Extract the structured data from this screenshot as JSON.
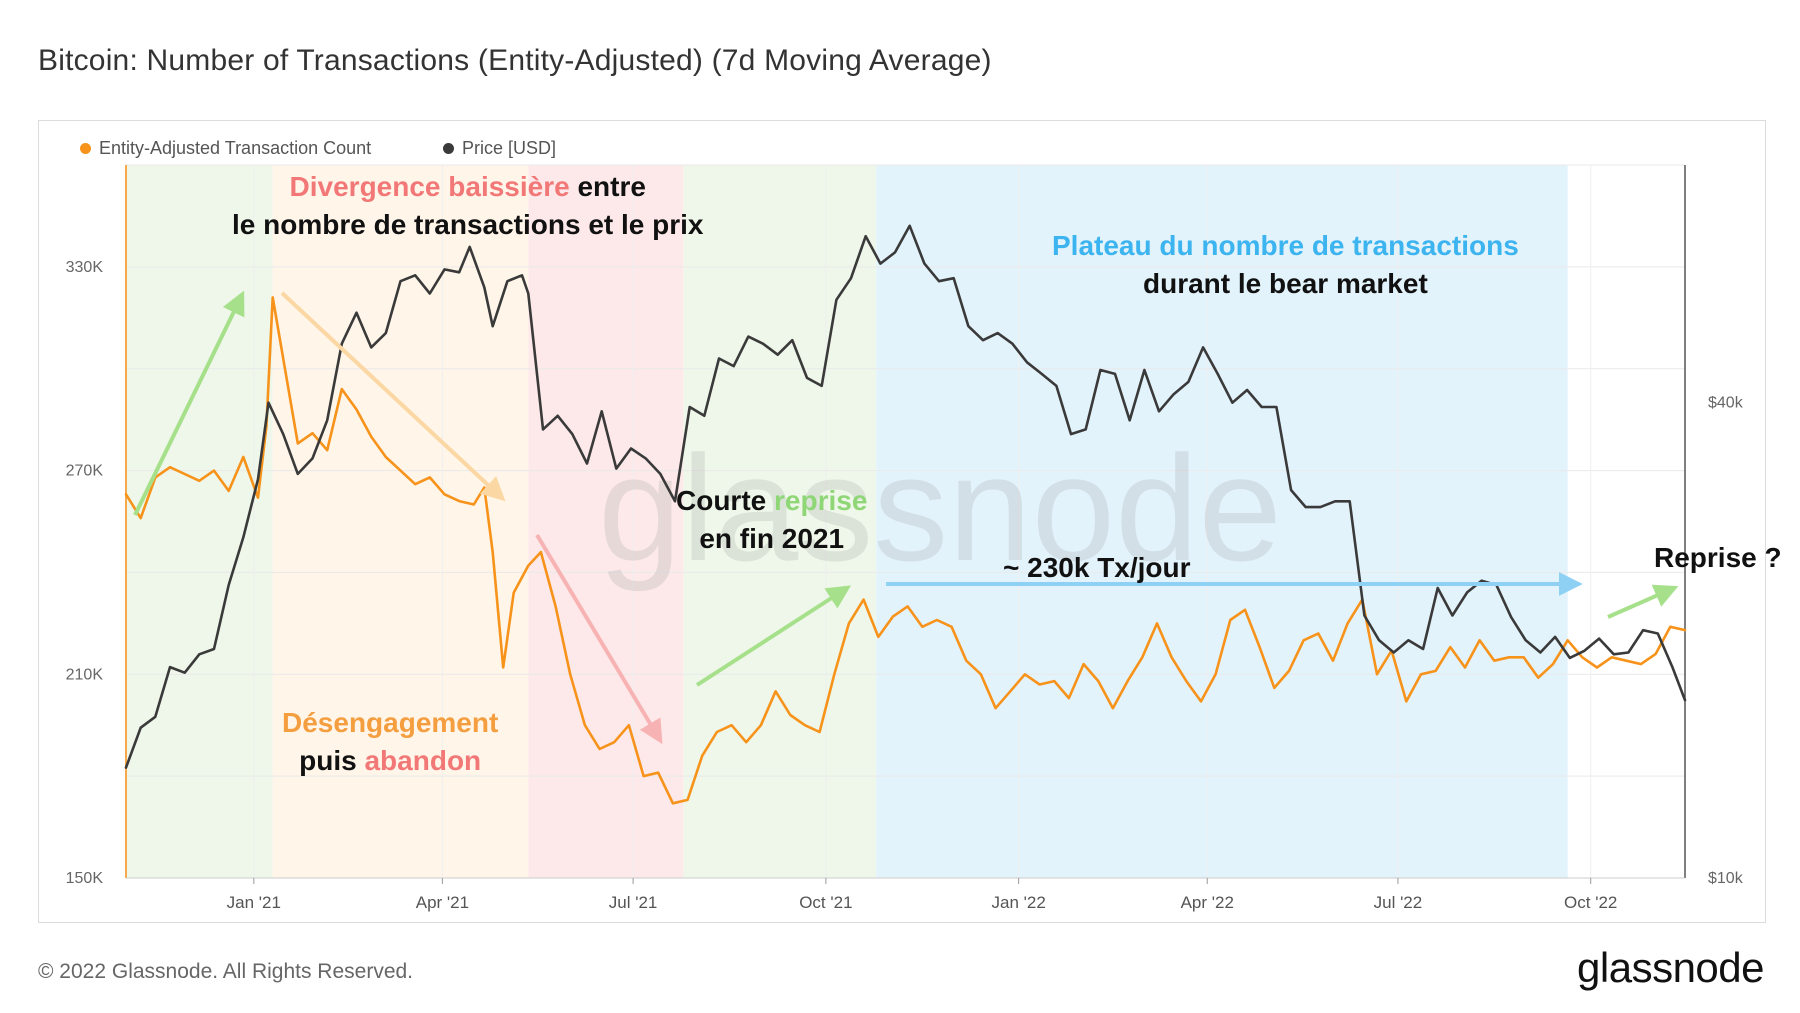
{
  "title": "Bitcoin: Number of Transactions (Entity-Adjusted) (7d Moving Average)",
  "footer": {
    "copyright": "© 2022 Glassnode. All Rights Reserved.",
    "logo": "glassnode"
  },
  "watermark": "glassnode",
  "colors": {
    "tx": "#f7931a",
    "price": "#3a3a3a",
    "green_zone": "#eef7e9",
    "orange_zone": "#fff5e9",
    "red_zone": "#fde9e9",
    "blue_zone": "#e3f3fc",
    "red_text": "#f27878",
    "orange_text": "#f59e3f",
    "green_text": "#8fd776",
    "blue_text": "#3cb4f0"
  },
  "annotations": {
    "divergence_colored": "Divergence baissière",
    "divergence_rest1": " entre",
    "divergence_line2": "le nombre de transactions et le prix",
    "disengagement_line1": "Désengagement",
    "disengagement_line2_a": "puis ",
    "disengagement_line2_b": "abandon",
    "recovery_a": "Courte ",
    "recovery_b": "reprise",
    "recovery_line2": "en fin 2021",
    "plateau_line1": "Plateau du nombre de transactions",
    "plateau_line2": "durant le bear market",
    "plateau_level": "~ 230k Tx/jour",
    "reprise": "Reprise ?"
  },
  "chart_data": {
    "type": "line",
    "title": "Bitcoin: Number of Transactions (Entity-Adjusted) (7d Moving Average)",
    "x_start": "2020-11-01",
    "x_end": "2022-11-15",
    "x_ticks": [
      "Jan '21",
      "Apr '21",
      "Jul '21",
      "Oct '21",
      "Jan '22",
      "Apr '22",
      "Jul '22",
      "Oct '22"
    ],
    "x_tick_dates": [
      "2021-01-01",
      "2021-04-01",
      "2021-07-01",
      "2021-10-01",
      "2022-01-01",
      "2022-04-01",
      "2022-07-01",
      "2022-10-01"
    ],
    "y_left": {
      "ticks": [
        "150K",
        "210K",
        "270K",
        "330K"
      ],
      "tick_values": [
        150000,
        210000,
        270000,
        330000
      ],
      "range": [
        150000,
        360000
      ]
    },
    "y_right": {
      "ticks": [
        "$10k",
        "$40k"
      ],
      "tick_values": [
        10000,
        40000
      ],
      "scale": "log",
      "range": [
        10000,
        80000
      ]
    },
    "legend": [
      {
        "name": "Entity-Adjusted Transaction Count",
        "color": "#f7931a"
      },
      {
        "name": "Price [USD]",
        "color": "#3a3a3a"
      }
    ],
    "zones": [
      {
        "from": "2020-11-01",
        "to": "2021-01-10",
        "type": "green"
      },
      {
        "from": "2021-01-10",
        "to": "2021-05-12",
        "type": "orange"
      },
      {
        "from": "2021-05-12",
        "to": "2021-07-25",
        "type": "red"
      },
      {
        "from": "2021-07-25",
        "to": "2021-10-25",
        "type": "green"
      },
      {
        "from": "2021-10-25",
        "to": "2022-09-20",
        "type": "blue"
      }
    ],
    "series": [
      {
        "name": "Entity-Adjusted Transaction Count",
        "axis": "left",
        "points": [
          [
            "2020-11-01",
            263000
          ],
          [
            "2020-11-08",
            256000
          ],
          [
            "2020-11-15",
            268000
          ],
          [
            "2020-11-22",
            271000
          ],
          [
            "2020-11-29",
            269000
          ],
          [
            "2020-12-06",
            267000
          ],
          [
            "2020-12-13",
            270000
          ],
          [
            "2020-12-20",
            264000
          ],
          [
            "2020-12-27",
            274000
          ],
          [
            "2021-01-03",
            262000
          ],
          [
            "2021-01-07",
            283000
          ],
          [
            "2021-01-10",
            321000
          ],
          [
            "2021-01-15",
            303000
          ],
          [
            "2021-01-22",
            278000
          ],
          [
            "2021-01-29",
            281000
          ],
          [
            "2021-02-05",
            276000
          ],
          [
            "2021-02-12",
            294000
          ],
          [
            "2021-02-19",
            288000
          ],
          [
            "2021-02-26",
            280000
          ],
          [
            "2021-03-05",
            274000
          ],
          [
            "2021-03-12",
            270000
          ],
          [
            "2021-03-19",
            266000
          ],
          [
            "2021-03-26",
            268000
          ],
          [
            "2021-04-02",
            263000
          ],
          [
            "2021-04-09",
            261000
          ],
          [
            "2021-04-16",
            260000
          ],
          [
            "2021-04-21",
            265000
          ],
          [
            "2021-04-25",
            246000
          ],
          [
            "2021-04-30",
            212000
          ],
          [
            "2021-05-05",
            234000
          ],
          [
            "2021-05-12",
            242000
          ],
          [
            "2021-05-18",
            246000
          ],
          [
            "2021-05-25",
            230000
          ],
          [
            "2021-06-01",
            210000
          ],
          [
            "2021-06-08",
            195000
          ],
          [
            "2021-06-15",
            188000
          ],
          [
            "2021-06-22",
            190000
          ],
          [
            "2021-06-29",
            195000
          ],
          [
            "2021-07-06",
            180000
          ],
          [
            "2021-07-13",
            181000
          ],
          [
            "2021-07-20",
            172000
          ],
          [
            "2021-07-27",
            173000
          ],
          [
            "2021-08-03",
            186000
          ],
          [
            "2021-08-10",
            193000
          ],
          [
            "2021-08-17",
            195000
          ],
          [
            "2021-08-24",
            190000
          ],
          [
            "2021-08-31",
            195000
          ],
          [
            "2021-09-07",
            205000
          ],
          [
            "2021-09-14",
            198000
          ],
          [
            "2021-09-21",
            195000
          ],
          [
            "2021-09-28",
            193000
          ],
          [
            "2021-10-05",
            210000
          ],
          [
            "2021-10-12",
            225000
          ],
          [
            "2021-10-19",
            232000
          ],
          [
            "2021-10-26",
            221000
          ],
          [
            "2021-11-02",
            227000
          ],
          [
            "2021-11-09",
            230000
          ],
          [
            "2021-11-16",
            224000
          ],
          [
            "2021-11-23",
            226000
          ],
          [
            "2021-11-30",
            224000
          ],
          [
            "2021-12-07",
            214000
          ],
          [
            "2021-12-14",
            210000
          ],
          [
            "2021-12-21",
            200000
          ],
          [
            "2021-12-28",
            205000
          ],
          [
            "2022-01-04",
            210000
          ],
          [
            "2022-01-11",
            207000
          ],
          [
            "2022-01-18",
            208000
          ],
          [
            "2022-01-25",
            203000
          ],
          [
            "2022-02-01",
            213000
          ],
          [
            "2022-02-08",
            208000
          ],
          [
            "2022-02-15",
            200000
          ],
          [
            "2022-02-22",
            208000
          ],
          [
            "2022-03-01",
            215000
          ],
          [
            "2022-03-08",
            225000
          ],
          [
            "2022-03-15",
            215000
          ],
          [
            "2022-03-22",
            208000
          ],
          [
            "2022-03-29",
            202000
          ],
          [
            "2022-04-05",
            210000
          ],
          [
            "2022-04-12",
            226000
          ],
          [
            "2022-04-19",
            229000
          ],
          [
            "2022-04-26",
            218000
          ],
          [
            "2022-05-03",
            206000
          ],
          [
            "2022-05-10",
            211000
          ],
          [
            "2022-05-17",
            220000
          ],
          [
            "2022-05-24",
            222000
          ],
          [
            "2022-05-31",
            214000
          ],
          [
            "2022-06-07",
            225000
          ],
          [
            "2022-06-14",
            232000
          ],
          [
            "2022-06-21",
            210000
          ],
          [
            "2022-06-28",
            217000
          ],
          [
            "2022-07-05",
            202000
          ],
          [
            "2022-07-12",
            210000
          ],
          [
            "2022-07-19",
            211000
          ],
          [
            "2022-07-26",
            218000
          ],
          [
            "2022-08-02",
            212000
          ],
          [
            "2022-08-09",
            220000
          ],
          [
            "2022-08-16",
            214000
          ],
          [
            "2022-08-23",
            215000
          ],
          [
            "2022-08-30",
            215000
          ],
          [
            "2022-09-06",
            209000
          ],
          [
            "2022-09-13",
            213000
          ],
          [
            "2022-09-20",
            220000
          ],
          [
            "2022-09-27",
            215000
          ],
          [
            "2022-10-04",
            212000
          ],
          [
            "2022-10-11",
            215000
          ],
          [
            "2022-10-18",
            214000
          ],
          [
            "2022-10-25",
            213000
          ],
          [
            "2022-11-01",
            216000
          ],
          [
            "2022-11-08",
            224000
          ],
          [
            "2022-11-15",
            223000
          ]
        ]
      },
      {
        "name": "Price [USD]",
        "axis": "right",
        "points": [
          [
            "2020-11-01",
            13800
          ],
          [
            "2020-11-08",
            15500
          ],
          [
            "2020-11-15",
            16000
          ],
          [
            "2020-11-22",
            18500
          ],
          [
            "2020-11-29",
            18200
          ],
          [
            "2020-12-06",
            19200
          ],
          [
            "2020-12-13",
            19500
          ],
          [
            "2020-12-20",
            23500
          ],
          [
            "2020-12-27",
            27000
          ],
          [
            "2021-01-03",
            32000
          ],
          [
            "2021-01-08",
            40000
          ],
          [
            "2021-01-15",
            36500
          ],
          [
            "2021-01-22",
            32500
          ],
          [
            "2021-01-29",
            34000
          ],
          [
            "2021-02-05",
            38000
          ],
          [
            "2021-02-12",
            47500
          ],
          [
            "2021-02-19",
            52000
          ],
          [
            "2021-02-26",
            47000
          ],
          [
            "2021-03-05",
            49000
          ],
          [
            "2021-03-12",
            57000
          ],
          [
            "2021-03-19",
            58000
          ],
          [
            "2021-03-26",
            55000
          ],
          [
            "2021-04-02",
            59000
          ],
          [
            "2021-04-09",
            58500
          ],
          [
            "2021-04-14",
            63000
          ],
          [
            "2021-04-21",
            56000
          ],
          [
            "2021-04-25",
            50000
          ],
          [
            "2021-05-02",
            57000
          ],
          [
            "2021-05-09",
            58000
          ],
          [
            "2021-05-12",
            55000
          ],
          [
            "2021-05-19",
            37000
          ],
          [
            "2021-05-26",
            38500
          ],
          [
            "2021-06-02",
            36500
          ],
          [
            "2021-06-09",
            33500
          ],
          [
            "2021-06-16",
            39000
          ],
          [
            "2021-06-23",
            33000
          ],
          [
            "2021-06-30",
            35000
          ],
          [
            "2021-07-07",
            34000
          ],
          [
            "2021-07-14",
            32500
          ],
          [
            "2021-07-21",
            30000
          ],
          [
            "2021-07-28",
            39500
          ],
          [
            "2021-08-04",
            38500
          ],
          [
            "2021-08-11",
            45500
          ],
          [
            "2021-08-18",
            44500
          ],
          [
            "2021-08-25",
            48500
          ],
          [
            "2021-09-01",
            47500
          ],
          [
            "2021-09-08",
            46000
          ],
          [
            "2021-09-15",
            48000
          ],
          [
            "2021-09-22",
            43000
          ],
          [
            "2021-09-29",
            42000
          ],
          [
            "2021-10-06",
            54000
          ],
          [
            "2021-10-13",
            57500
          ],
          [
            "2021-10-20",
            65000
          ],
          [
            "2021-10-27",
            60000
          ],
          [
            "2021-11-03",
            62000
          ],
          [
            "2021-11-10",
            67000
          ],
          [
            "2021-11-17",
            60000
          ],
          [
            "2021-11-24",
            57000
          ],
          [
            "2021-12-01",
            57500
          ],
          [
            "2021-12-08",
            50000
          ],
          [
            "2021-12-15",
            48000
          ],
          [
            "2021-12-22",
            49000
          ],
          [
            "2021-12-29",
            47500
          ],
          [
            "2022-01-05",
            45000
          ],
          [
            "2022-01-12",
            43500
          ],
          [
            "2022-01-19",
            42000
          ],
          [
            "2022-01-26",
            36500
          ],
          [
            "2022-02-02",
            37000
          ],
          [
            "2022-02-09",
            44000
          ],
          [
            "2022-02-16",
            43500
          ],
          [
            "2022-02-23",
            38000
          ],
          [
            "2022-03-02",
            44000
          ],
          [
            "2022-03-09",
            39000
          ],
          [
            "2022-03-16",
            41000
          ],
          [
            "2022-03-23",
            42500
          ],
          [
            "2022-03-30",
            47000
          ],
          [
            "2022-04-06",
            43500
          ],
          [
            "2022-04-13",
            40000
          ],
          [
            "2022-04-20",
            41500
          ],
          [
            "2022-04-27",
            39500
          ],
          [
            "2022-05-04",
            39500
          ],
          [
            "2022-05-11",
            31000
          ],
          [
            "2022-05-18",
            29500
          ],
          [
            "2022-05-25",
            29500
          ],
          [
            "2022-06-01",
            30000
          ],
          [
            "2022-06-08",
            30000
          ],
          [
            "2022-06-15",
            21500
          ],
          [
            "2022-06-22",
            20000
          ],
          [
            "2022-06-29",
            19300
          ],
          [
            "2022-07-06",
            20000
          ],
          [
            "2022-07-13",
            19500
          ],
          [
            "2022-07-20",
            23300
          ],
          [
            "2022-07-27",
            21500
          ],
          [
            "2022-08-03",
            23000
          ],
          [
            "2022-08-10",
            23800
          ],
          [
            "2022-08-17",
            23500
          ],
          [
            "2022-08-24",
            21400
          ],
          [
            "2022-08-31",
            20000
          ],
          [
            "2022-09-07",
            19300
          ],
          [
            "2022-09-14",
            20200
          ],
          [
            "2022-09-21",
            19000
          ],
          [
            "2022-09-28",
            19400
          ],
          [
            "2022-10-05",
            20100
          ],
          [
            "2022-10-12",
            19200
          ],
          [
            "2022-10-19",
            19300
          ],
          [
            "2022-10-26",
            20600
          ],
          [
            "2022-11-02",
            20400
          ],
          [
            "2022-11-09",
            18500
          ],
          [
            "2022-11-15",
            16800
          ]
        ]
      }
    ],
    "annotations": {
      "plateau_level_value": 230000
    }
  }
}
